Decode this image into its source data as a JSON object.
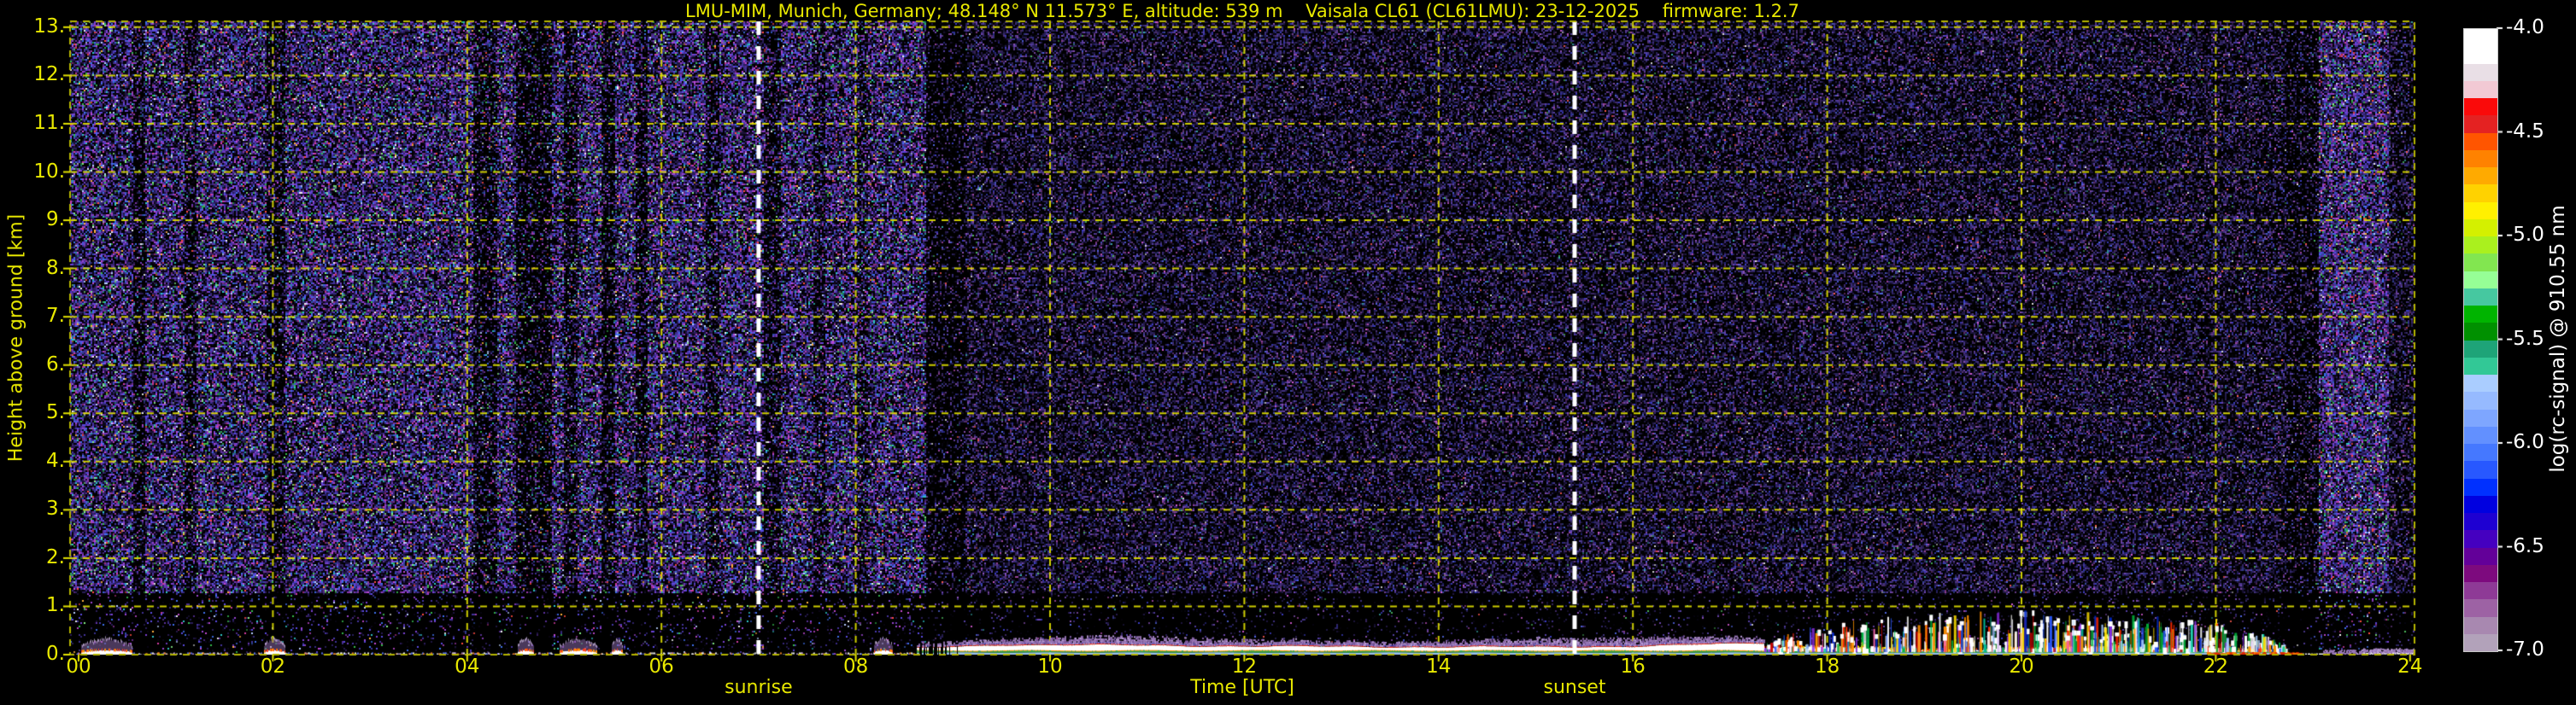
{
  "header": {
    "title": "LMU-MIM, Munich, Germany; 48.148° N 11.573° E, altitude: 539 m    Vaisala CL61 (CL61LMU): 23-12-2025    firmware: 1.2.7"
  },
  "plot": {
    "xlabel": "Time [UTC]",
    "ylabel": "Height above ground [km]",
    "x_tick_labels": [
      "00",
      "02",
      "04",
      "06",
      "08",
      "10",
      "12",
      "14",
      "16",
      "18",
      "20",
      "22",
      "24"
    ],
    "y_tick_labels": [
      "0.",
      "1.",
      "2.",
      "3.",
      "4.",
      "5.",
      "6.",
      "7.",
      "8.",
      "9.",
      "10.",
      "11.",
      "12.",
      "13."
    ],
    "annotations": {
      "sunrise": "sunrise",
      "sunset": "sunset"
    }
  },
  "colorbar": {
    "label": "log(rc-signal) @ 910.55 nm",
    "tick_labels": [
      "-4.0",
      "-4.5",
      "-5.0",
      "-5.5",
      "-6.0",
      "-6.5",
      "-7.0"
    ],
    "colors_top_to_bottom": [
      "#ffffff",
      "#ffffff",
      "#e9dfe6",
      "#f2c9d4",
      "#fa0a0a",
      "#e42222",
      "#ff5500",
      "#ff8200",
      "#ffaa00",
      "#ffd200",
      "#fff000",
      "#d4f000",
      "#aaf01e",
      "#82e650",
      "#96ff96",
      "#46c8a0",
      "#00b400",
      "#009000",
      "#1ea478",
      "#32c896",
      "#aacdff",
      "#96baff",
      "#7ea6ff",
      "#6290ff",
      "#4578ff",
      "#2858ff",
      "#0030ff",
      "#0000e0",
      "#1e00d2",
      "#4500c0",
      "#630099",
      "#7d0a7e",
      "#8e3a96",
      "#9d62a4",
      "#a888b0",
      "#b2a2ba"
    ]
  },
  "colors": {
    "background": "#000000",
    "axis_text": "#e8e800",
    "grid": "#e3e300",
    "spine": "#b4b400",
    "colorbar_text": "#ffffff",
    "sun_line": "#ffffff"
  },
  "chart_data": {
    "type": "heatmap",
    "title": "LMU-MIM, Munich, Germany; 48.148° N 11.573° E, altitude: 539 m    Vaisala CL61 (CL61LMU): 23-12-2025    firmware: 1.2.7",
    "xlabel": "Time [UTC]",
    "ylabel": "Height above ground [km]",
    "x_range_h": [
      0,
      24
    ],
    "x_tick_step_h": 2,
    "y_range_km": [
      0,
      13.2
    ],
    "y_tick_step_km": 1,
    "value_label": "log(rc-signal) @ 910.55 nm",
    "value_range": [
      -7.0,
      -4.0
    ],
    "grid_style": "dashed yellow every 2 h and 1 km",
    "events": {
      "sunrise_h": 7.0,
      "sunset_h": 15.4
    },
    "noise_regions": [
      {
        "until_h": 8.72,
        "density": 0.78,
        "palette": "bright"
      },
      {
        "until_h": 9.12,
        "density": 0.3,
        "palette": "dim"
      },
      {
        "until_h": 22.72,
        "density": 0.6,
        "palette": "dim"
      },
      {
        "until_h": 23.05,
        "density": 0.38,
        "palette": "dim"
      },
      {
        "until_h": 23.77,
        "density": 0.88,
        "palette": "bright"
      },
      {
        "until_h": 24.1,
        "density": 0.55,
        "palette": "dim"
      }
    ],
    "dark_columns": [
      [
        0.55,
        0.68,
        0.5
      ],
      [
        1.08,
        1.2,
        0.6
      ],
      [
        1.93,
        2.12,
        0.55
      ],
      [
        4.05,
        4.3,
        0.5
      ],
      [
        4.5,
        4.87,
        0.45
      ],
      [
        4.98,
        5.12,
        0.55
      ],
      [
        5.38,
        5.52,
        0.5
      ],
      [
        5.72,
        5.85,
        0.55
      ],
      [
        6.45,
        6.58,
        0.6
      ],
      [
        7.05,
        7.22,
        0.55
      ],
      [
        7.55,
        7.68,
        0.65
      ],
      [
        8.0,
        8.12,
        0.7
      ]
    ],
    "palettes": {
      "bright": [
        [
          "#0b0618",
          15
        ],
        [
          "#2a1c58",
          13
        ],
        [
          "#45339e",
          11
        ],
        [
          "#5a49e0",
          8
        ],
        [
          "#3f6fee",
          5
        ],
        [
          "#7a41d2",
          7
        ],
        [
          "#9a44d0",
          5
        ],
        [
          "#c24ad2",
          3
        ],
        [
          "#d23ca0",
          1.5
        ],
        [
          "#35bb4d",
          2.2
        ],
        [
          "#2ec8c8",
          2
        ],
        [
          "#85ee85",
          1
        ],
        [
          "#ffb03c",
          0.6
        ],
        [
          "#ff4b3c",
          0.8
        ],
        [
          "#f0f0f0",
          0.8
        ],
        [
          "#b8ceff",
          1.2
        ]
      ],
      "dim": [
        [
          "#070410",
          22
        ],
        [
          "#241a4c",
          16
        ],
        [
          "#3a2d7c",
          13
        ],
        [
          "#5440a4",
          10
        ],
        [
          "#6e46b2",
          6
        ],
        [
          "#8850b4",
          4
        ],
        [
          "#3a3cc2",
          5
        ],
        [
          "#4f63de",
          2.6
        ],
        [
          "#9c46a0",
          2.2
        ],
        [
          "#ce58ce",
          0.8
        ],
        [
          "#38aaaa",
          0.5
        ],
        [
          "#4ab45a",
          0.5
        ],
        [
          "#ff5a50",
          0.3
        ],
        [
          "#dcdcdc",
          0.35
        ]
      ]
    },
    "surface": {
      "blobs_h": [
        [
          0.02,
          0.55
        ],
        [
          1.9,
          2.12
        ],
        [
          4.52,
          4.68
        ],
        [
          4.95,
          5.33
        ],
        [
          5.48,
          5.6
        ],
        [
          8.18,
          8.38
        ]
      ],
      "band": {
        "start_h": 8.6,
        "end_h": 17.35,
        "patchy_until_h": 9.05,
        "white_top_km": [
          [
            8.6,
            0.12
          ],
          [
            9.5,
            0.205
          ],
          [
            11,
            0.185
          ],
          [
            13,
            0.16
          ],
          [
            15,
            0.155
          ],
          [
            16,
            0.17
          ],
          [
            17.3,
            0.235
          ]
        ]
      },
      "turbulence": {
        "start_h": 17.35,
        "end_h": 22.72,
        "max_top_km": 1.0,
        "spikes": 650
      },
      "late": {
        "start_h": 22.72,
        "purple_from_h": 23.1,
        "white_resume_h": 23.5
      }
    },
    "spike_palette": [
      [
        "#ffffff",
        20
      ],
      [
        "#ff2800",
        12
      ],
      [
        "#c80000",
        6
      ],
      [
        "#ff9100",
        11
      ],
      [
        "#ffe000",
        9
      ],
      [
        "#00b43c",
        11
      ],
      [
        "#008c28",
        5
      ],
      [
        "#2a5aff",
        10
      ],
      [
        "#0028c8",
        5
      ],
      [
        "#8a2be2",
        6
      ],
      [
        "#00c8a0",
        6
      ],
      [
        "#a0c8ff",
        4
      ],
      [
        "#ff69b4",
        2
      ]
    ]
  }
}
